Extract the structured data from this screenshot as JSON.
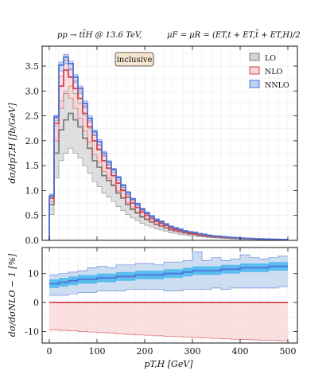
{
  "header": {
    "process": "pp → tt̄H @ 13.6 TeV,",
    "scale": "μF = μR = (ET,t + ET,t̄ + ET,H)/2"
  },
  "colors": {
    "lo": "#7f7f7f",
    "lo_fill": "#d4d4d4",
    "nlo": "#d8414a",
    "nlo_fill": "#f8d5d6",
    "nnlo": "#4f73d8",
    "nnlo_fill": "#bcd3ef",
    "nnlo_mc": "#3fb4ee"
  },
  "chart_data": [
    {
      "type": "line",
      "panel": "main",
      "annotation": "inclusive",
      "ylabel": "dσ/dpT,H [fb/GeV]",
      "xlim": [
        -15,
        520
      ],
      "ylim": [
        0,
        3.9
      ],
      "yticks": [
        0.0,
        0.5,
        1.0,
        1.5,
        2.0,
        2.5,
        3.0,
        3.5
      ],
      "xticks": [
        0,
        100,
        200,
        300,
        400,
        500
      ],
      "grid": true,
      "legend_position": "top-right",
      "bin_edges": [
        0,
        10,
        20,
        30,
        40,
        50,
        60,
        70,
        80,
        90,
        100,
        110,
        120,
        130,
        140,
        150,
        160,
        170,
        180,
        190,
        200,
        210,
        220,
        230,
        240,
        250,
        260,
        270,
        280,
        290,
        300,
        310,
        320,
        330,
        340,
        350,
        360,
        370,
        380,
        390,
        400,
        410,
        420,
        430,
        440,
        450,
        460,
        470,
        480,
        490,
        500
      ],
      "series": [
        {
          "name": "LO",
          "central": [
            0.72,
            1.75,
            2.22,
            2.42,
            2.55,
            2.42,
            2.28,
            2.05,
            1.85,
            1.6,
            1.47,
            1.3,
            1.2,
            1.1,
            0.95,
            0.85,
            0.72,
            0.62,
            0.55,
            0.47,
            0.42,
            0.37,
            0.32,
            0.29,
            0.25,
            0.21,
            0.19,
            0.17,
            0.15,
            0.13,
            0.12,
            0.1,
            0.09,
            0.08,
            0.07,
            0.065,
            0.058,
            0.05,
            0.045,
            0.04,
            0.035,
            0.031,
            0.028,
            0.025,
            0.022,
            0.02,
            0.018,
            0.016,
            0.014,
            0.012
          ],
          "upper": [
            0.88,
            2.3,
            2.8,
            3.0,
            3.1,
            2.95,
            2.75,
            2.5,
            2.25,
            2.0,
            1.85,
            1.6,
            1.45,
            1.3,
            1.15,
            1.02,
            0.88,
            0.75,
            0.66,
            0.58,
            0.5,
            0.45,
            0.39,
            0.35,
            0.3,
            0.26,
            0.23,
            0.21,
            0.18,
            0.16,
            0.14,
            0.12,
            0.11,
            0.1,
            0.085,
            0.078,
            0.07,
            0.062,
            0.055,
            0.048,
            0.042,
            0.038,
            0.034,
            0.03,
            0.027,
            0.024,
            0.021,
            0.019,
            0.017,
            0.015
          ],
          "lower": [
            0.52,
            1.25,
            1.6,
            1.75,
            1.85,
            1.75,
            1.65,
            1.5,
            1.35,
            1.18,
            1.08,
            0.95,
            0.87,
            0.78,
            0.68,
            0.6,
            0.52,
            0.45,
            0.4,
            0.34,
            0.3,
            0.27,
            0.23,
            0.21,
            0.18,
            0.15,
            0.14,
            0.12,
            0.11,
            0.095,
            0.085,
            0.072,
            0.065,
            0.058,
            0.05,
            0.046,
            0.041,
            0.036,
            0.032,
            0.028,
            0.025,
            0.022,
            0.02,
            0.018,
            0.016,
            0.014,
            0.013,
            0.011,
            0.01,
            0.009
          ]
        },
        {
          "name": "NLO",
          "central": [
            0.85,
            2.35,
            3.1,
            3.42,
            3.28,
            3.05,
            2.85,
            2.55,
            2.28,
            2.0,
            1.82,
            1.6,
            1.45,
            1.3,
            1.15,
            1.0,
            0.87,
            0.75,
            0.66,
            0.57,
            0.5,
            0.44,
            0.38,
            0.34,
            0.3,
            0.25,
            0.22,
            0.2,
            0.17,
            0.15,
            0.14,
            0.12,
            0.11,
            0.09,
            0.08,
            0.074,
            0.066,
            0.058,
            0.052,
            0.046,
            0.04,
            0.036,
            0.032,
            0.029,
            0.026,
            0.023,
            0.02,
            0.018,
            0.016,
            0.014
          ],
          "upper": [
            0.9,
            2.45,
            3.3,
            3.62,
            3.45,
            3.2,
            3.0,
            2.7,
            2.4,
            2.12,
            1.92,
            1.7,
            1.53,
            1.37,
            1.21,
            1.06,
            0.92,
            0.8,
            0.7,
            0.6,
            0.53,
            0.47,
            0.4,
            0.36,
            0.32,
            0.27,
            0.24,
            0.21,
            0.18,
            0.16,
            0.15,
            0.13,
            0.12,
            0.1,
            0.09,
            0.08,
            0.072,
            0.063,
            0.056,
            0.05,
            0.044,
            0.039,
            0.035,
            0.031,
            0.028,
            0.025,
            0.022,
            0.02,
            0.017,
            0.015
          ],
          "lower": [
            0.78,
            2.0,
            2.65,
            2.95,
            2.85,
            2.65,
            2.45,
            2.2,
            1.97,
            1.72,
            1.57,
            1.38,
            1.25,
            1.12,
            0.99,
            0.86,
            0.75,
            0.65,
            0.57,
            0.49,
            0.43,
            0.38,
            0.33,
            0.29,
            0.26,
            0.22,
            0.19,
            0.17,
            0.15,
            0.13,
            0.12,
            0.1,
            0.09,
            0.08,
            0.07,
            0.064,
            0.057,
            0.05,
            0.045,
            0.04,
            0.035,
            0.031,
            0.028,
            0.025,
            0.022,
            0.02,
            0.017,
            0.015,
            0.014,
            0.012
          ]
        },
        {
          "name": "NNLO",
          "central": [
            0.9,
            2.48,
            3.52,
            3.68,
            3.55,
            3.28,
            3.05,
            2.75,
            2.45,
            2.18,
            1.98,
            1.75,
            1.57,
            1.42,
            1.26,
            1.1,
            0.96,
            0.83,
            0.73,
            0.63,
            0.55,
            0.49,
            0.42,
            0.38,
            0.33,
            0.28,
            0.25,
            0.22,
            0.19,
            0.17,
            0.16,
            0.135,
            0.12,
            0.1,
            0.09,
            0.083,
            0.074,
            0.065,
            0.058,
            0.051,
            0.045,
            0.04,
            0.036,
            0.032,
            0.029,
            0.026,
            0.023,
            0.02,
            0.018,
            0.016
          ],
          "upper": [
            0.93,
            2.52,
            3.58,
            3.73,
            3.6,
            3.33,
            3.1,
            2.8,
            2.5,
            2.22,
            2.02,
            1.79,
            1.6,
            1.45,
            1.29,
            1.13,
            0.98,
            0.85,
            0.75,
            0.65,
            0.57,
            0.5,
            0.43,
            0.39,
            0.34,
            0.29,
            0.26,
            0.23,
            0.2,
            0.18,
            0.17,
            0.14,
            0.13,
            0.11,
            0.095,
            0.087,
            0.078,
            0.068,
            0.061,
            0.054,
            0.047,
            0.042,
            0.038,
            0.034,
            0.03,
            0.027,
            0.024,
            0.021,
            0.019,
            0.017
          ],
          "lower": [
            0.86,
            2.4,
            3.4,
            3.55,
            3.42,
            3.17,
            2.95,
            2.66,
            2.37,
            2.1,
            1.91,
            1.69,
            1.51,
            1.37,
            1.21,
            1.06,
            0.92,
            0.8,
            0.7,
            0.61,
            0.53,
            0.47,
            0.4,
            0.36,
            0.32,
            0.27,
            0.24,
            0.21,
            0.18,
            0.16,
            0.15,
            0.13,
            0.115,
            0.097,
            0.086,
            0.079,
            0.071,
            0.062,
            0.056,
            0.049,
            0.043,
            0.038,
            0.034,
            0.031,
            0.028,
            0.025,
            0.022,
            0.019,
            0.017,
            0.015
          ]
        }
      ]
    },
    {
      "type": "line",
      "panel": "ratio",
      "ylabel": "dσ/dσNLO − 1 [%]",
      "xlabel": "pT,H [GeV]",
      "xlim": [
        -15,
        520
      ],
      "ylim": [
        -14,
        19
      ],
      "yticks": [
        -10,
        0,
        10
      ],
      "xticks": [
        0,
        100,
        200,
        300,
        400,
        500
      ],
      "grid": true,
      "bin_edges": [
        0,
        20,
        40,
        60,
        80,
        100,
        120,
        140,
        160,
        180,
        200,
        220,
        240,
        260,
        280,
        300,
        320,
        340,
        360,
        380,
        400,
        420,
        440,
        460,
        480,
        500
      ],
      "series": [
        {
          "name": "NLO",
          "central": [
            0,
            0,
            0,
            0,
            0,
            0,
            0,
            0,
            0,
            0,
            0,
            0,
            0,
            0,
            0,
            0,
            0,
            0,
            0,
            0,
            0,
            0,
            0,
            0,
            0
          ],
          "upper": [
            0,
            0,
            0,
            0,
            0,
            0,
            0,
            0,
            0,
            0,
            0,
            0,
            0,
            0,
            0,
            0,
            0,
            0,
            0,
            0,
            0,
            0,
            0,
            0,
            0
          ],
          "lower": [
            -9.5,
            -9.6,
            -9.8,
            -10.0,
            -10.2,
            -10.4,
            -10.6,
            -10.8,
            -11.0,
            -11.2,
            -11.3,
            -11.5,
            -11.7,
            -11.8,
            -12.0,
            -12.1,
            -12.3,
            -12.4,
            -12.5,
            -12.7,
            -12.8,
            -12.9,
            -13.0,
            -13.1,
            -13.2
          ]
        },
        {
          "name": "NNLO",
          "central": [
            6.5,
            7.0,
            7.5,
            8.0,
            8.0,
            8.5,
            8.5,
            9.0,
            9.0,
            9.5,
            9.5,
            9.5,
            10.0,
            10.0,
            10.5,
            11.0,
            11.0,
            11.0,
            11.5,
            11.5,
            12.0,
            12.0,
            12.0,
            12.5,
            12.5
          ],
          "upper": [
            9.5,
            10.0,
            10.5,
            11.0,
            12.0,
            12.5,
            12.0,
            13.0,
            13.0,
            13.5,
            13.5,
            13.0,
            14.0,
            14.0,
            14.5,
            17.5,
            14.5,
            15.5,
            14.5,
            15.0,
            16.5,
            15.5,
            15.0,
            15.5,
            16.0
          ],
          "lower": [
            2.5,
            2.5,
            3.0,
            3.5,
            3.5,
            4.0,
            4.0,
            4.0,
            4.5,
            4.5,
            4.5,
            4.5,
            4.0,
            4.0,
            4.5,
            4.5,
            4.5,
            5.0,
            4.5,
            5.0,
            5.0,
            5.0,
            5.0,
            5.0,
            5.5
          ],
          "mc_upper": [
            8.0,
            8.5,
            9.0,
            9.5,
            9.5,
            10.0,
            10.0,
            10.5,
            10.5,
            11.0,
            11.0,
            11.0,
            11.5,
            11.5,
            12.0,
            12.5,
            12.5,
            12.5,
            13.0,
            13.0,
            13.5,
            13.5,
            13.5,
            14.0,
            14.0
          ],
          "mc_lower": [
            5.0,
            5.5,
            6.0,
            6.5,
            6.5,
            7.0,
            7.0,
            7.5,
            7.5,
            8.0,
            8.0,
            8.0,
            8.5,
            8.5,
            9.0,
            9.5,
            9.5,
            9.5,
            10.0,
            10.0,
            10.5,
            10.5,
            10.5,
            11.0,
            11.0
          ]
        }
      ]
    }
  ]
}
